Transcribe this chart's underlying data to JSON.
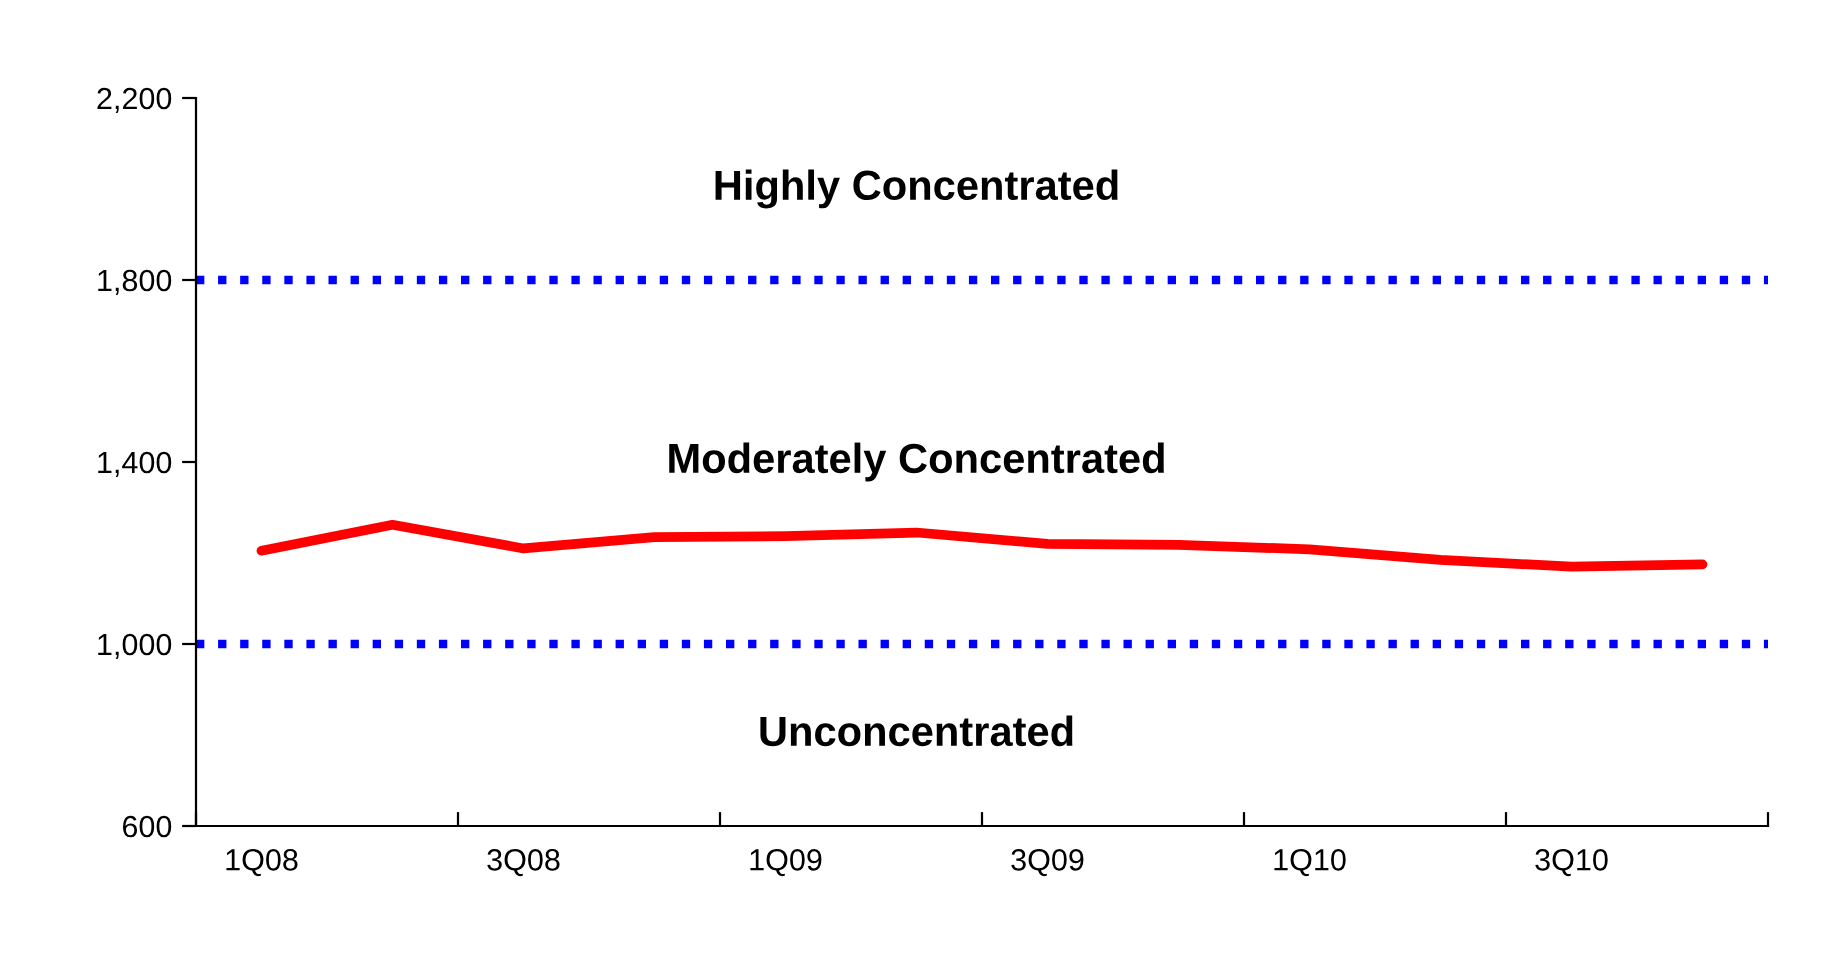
{
  "chart_data": {
    "type": "line",
    "categories": [
      "1Q08",
      null,
      "3Q08",
      null,
      "1Q09",
      null,
      "3Q09",
      null,
      "1Q10",
      null,
      "3Q10",
      null
    ],
    "series": [
      {
        "color": "#ff0000",
        "values": [
          1205,
          1262,
          1210,
          1235,
          1237,
          1245,
          1220,
          1218,
          1208,
          1185,
          1170,
          1175
        ]
      }
    ],
    "ylim": [
      600,
      2200
    ],
    "yticks": [
      {
        "value": 600,
        "label": "600"
      },
      {
        "value": 1000,
        "label": "1,000"
      },
      {
        "value": 1400,
        "label": "1,400"
      },
      {
        "value": 1800,
        "label": "1,800"
      },
      {
        "value": 2200,
        "label": "2,200"
      }
    ],
    "ref_lines": [
      {
        "axis": "y",
        "value": 1800,
        "color": "#0000ff",
        "line_style": "dotted"
      },
      {
        "axis": "y",
        "value": 1000,
        "color": "#0000ff",
        "line_style": "dotted"
      }
    ],
    "annotations": [
      "Highly Concentrated",
      "Moderately Concentrated",
      "Unconcentrated"
    ],
    "grid": false,
    "legend": false,
    "marker": "none",
    "line_style": "solid"
  }
}
